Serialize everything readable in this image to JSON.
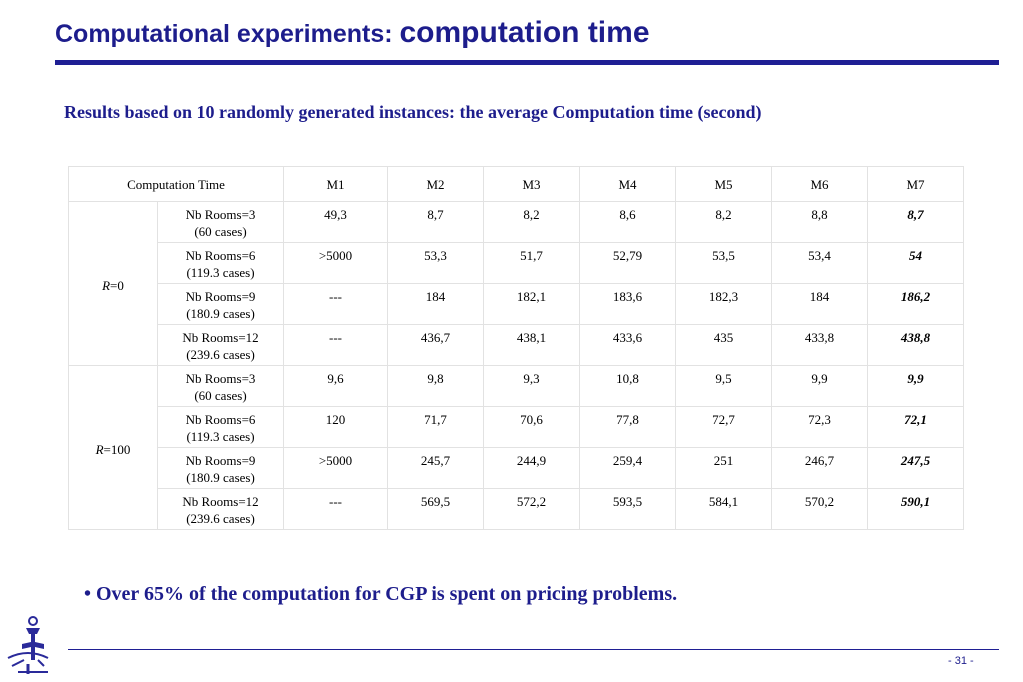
{
  "slide": {
    "title_part1": "Computational experiments: ",
    "title_part2": "computation time",
    "subtitle": "Results based on 10 randomly generated instances: the average Computation time (second)",
    "bullet": "• Over 65% of the computation for CGP is spent on pricing problems.",
    "page_number": "- 31 -"
  },
  "table": {
    "corner_header": "Computation Time",
    "methods": [
      "M1",
      "M2",
      "M3",
      "M4",
      "M5",
      "M6",
      "M7"
    ],
    "groups": [
      {
        "r_var": "R",
        "r_value": "=0",
        "rows": [
          {
            "rooms": "Nb Rooms=3",
            "cases": "(60 cases)",
            "values": [
              "49,3",
              "8,7",
              "8,2",
              "8,6",
              "8,2",
              "8,8",
              "8,7"
            ]
          },
          {
            "rooms": "Nb Rooms=6",
            "cases": "(119.3 cases)",
            "values": [
              ">5000",
              "53,3",
              "51,7",
              "52,79",
              "53,5",
              "53,4",
              "54"
            ]
          },
          {
            "rooms": "Nb Rooms=9",
            "cases": "(180.9 cases)",
            "values": [
              "---",
              "184",
              "182,1",
              "183,6",
              "182,3",
              "184",
              "186,2"
            ]
          },
          {
            "rooms": "Nb Rooms=12",
            "cases": "(239.6 cases)",
            "values": [
              "---",
              "436,7",
              "438,1",
              "433,6",
              "435",
              "433,8",
              "438,8"
            ]
          }
        ]
      },
      {
        "r_var": "R",
        "r_value": "=100",
        "rows": [
          {
            "rooms": "Nb Rooms=3",
            "cases": "(60 cases)",
            "values": [
              "9,6",
              "9,8",
              "9,3",
              "10,8",
              "9,5",
              "9,9",
              "9,9"
            ]
          },
          {
            "rooms": "Nb Rooms=6",
            "cases": "(119.3 cases)",
            "values": [
              "120",
              "71,7",
              "70,6",
              "77,8",
              "72,7",
              "72,3",
              "72,1"
            ]
          },
          {
            "rooms": "Nb Rooms=9",
            "cases": "(180.9 cases)",
            "values": [
              ">5000",
              "245,7",
              "244,9",
              "259,4",
              "251",
              "246,7",
              "247,5"
            ]
          },
          {
            "rooms": "Nb Rooms=12",
            "cases": "(239.6 cases)",
            "values": [
              "---",
              "569,5",
              "572,2",
              "593,5",
              "584,1",
              "570,2",
              "590,1"
            ]
          }
        ]
      }
    ]
  },
  "colors": {
    "title_blue": "#1d1d8c",
    "rule_blue": "#1f1f94"
  },
  "icons": {
    "logo": "institution-logo-icon"
  }
}
